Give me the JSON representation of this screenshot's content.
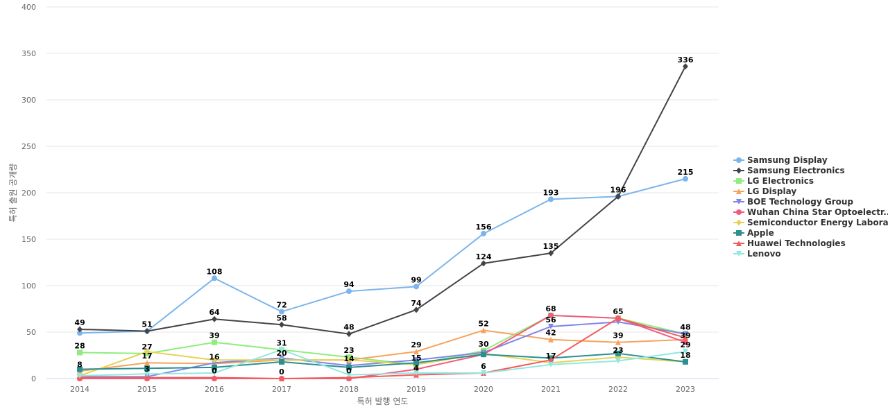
{
  "chart_data": {
    "type": "line",
    "title": "",
    "xlabel": "특허 발행 연도",
    "ylabel": "특허 출원 공개량",
    "x": [
      "2014",
      "2015",
      "2016",
      "2017",
      "2018",
      "2019",
      "2020",
      "2021",
      "2022",
      "2023"
    ],
    "ylim": [
      0,
      400
    ],
    "yticks": [
      0,
      50,
      100,
      150,
      200,
      250,
      300,
      350,
      400
    ],
    "grid": true,
    "legend_position": "right",
    "series": [
      {
        "name": "Samsung Display",
        "color": "#7cb5ec",
        "marker": "circle",
        "values": [
          49,
          51,
          108,
          72,
          94,
          99,
          156,
          193,
          196,
          215
        ]
      },
      {
        "name": "Samsung Electronics",
        "color": "#434348",
        "marker": "diamond",
        "values": [
          53,
          51,
          64,
          58,
          48,
          74,
          124,
          135,
          196,
          336
        ]
      },
      {
        "name": "LG Electronics",
        "color": "#90ed7d",
        "marker": "square",
        "values": [
          28,
          27,
          39,
          31,
          23,
          15,
          30,
          68,
          65,
          48
        ]
      },
      {
        "name": "LG Display",
        "color": "#f7a35c",
        "marker": "triangle",
        "values": [
          8,
          17,
          16,
          20,
          20,
          29,
          52,
          42,
          39,
          42
        ]
      },
      {
        "name": "BOE Technology Group",
        "color": "#8085e9",
        "marker": "triangle-down",
        "values": [
          2,
          2,
          17,
          22,
          14,
          20,
          28,
          56,
          61,
          48
        ]
      },
      {
        "name": "Wuhan China Star Optoelectr...",
        "color": "#f15c80",
        "marker": "circle",
        "values": [
          0,
          0,
          0,
          0,
          0,
          10,
          26,
          68,
          65,
          39
        ]
      },
      {
        "name": "Semiconductor Energy Labora...",
        "color": "#e4d354",
        "marker": "diamond",
        "values": [
          3,
          29,
          20,
          20,
          20,
          15,
          27,
          17,
          23,
          18
        ]
      },
      {
        "name": "Apple",
        "color": "#2b908f",
        "marker": "square",
        "values": [
          10,
          11,
          12,
          18,
          12,
          17,
          26,
          22,
          27,
          18
        ]
      },
      {
        "name": "Huawei Technologies",
        "color": "#f45b5b",
        "marker": "triangle",
        "values": [
          1,
          1,
          1,
          0,
          1,
          4,
          6,
          20,
          65,
          44
        ]
      },
      {
        "name": "Lenovo",
        "color": "#91e8e1",
        "marker": "triangle-down",
        "values": [
          3,
          5,
          6,
          31,
          4,
          6,
          6,
          15,
          19,
          29
        ]
      }
    ],
    "data_labels": [
      {
        "text": "49",
        "x": "2014",
        "y": 53
      },
      {
        "text": "28",
        "x": "2014",
        "y": 28
      },
      {
        "text": "8",
        "x": "2014",
        "y": 8
      },
      {
        "text": "51",
        "x": "2015",
        "y": 51
      },
      {
        "text": "27",
        "x": "2015",
        "y": 27
      },
      {
        "text": "17",
        "x": "2015",
        "y": 17
      },
      {
        "text": "3",
        "x": "2015",
        "y": 3
      },
      {
        "text": "108",
        "x": "2016",
        "y": 108
      },
      {
        "text": "64",
        "x": "2016",
        "y": 64
      },
      {
        "text": "39",
        "x": "2016",
        "y": 39
      },
      {
        "text": "16",
        "x": "2016",
        "y": 16
      },
      {
        "text": "0",
        "x": "2016",
        "y": 1
      },
      {
        "text": "72",
        "x": "2017",
        "y": 72
      },
      {
        "text": "58",
        "x": "2017",
        "y": 58
      },
      {
        "text": "31",
        "x": "2017",
        "y": 31
      },
      {
        "text": "20",
        "x": "2017",
        "y": 20
      },
      {
        "text": "0",
        "x": "2017",
        "y": 0
      },
      {
        "text": "94",
        "x": "2018",
        "y": 94
      },
      {
        "text": "48",
        "x": "2018",
        "y": 48
      },
      {
        "text": "23",
        "x": "2018",
        "y": 23
      },
      {
        "text": "14",
        "x": "2018",
        "y": 14
      },
      {
        "text": "0",
        "x": "2018",
        "y": 1
      },
      {
        "text": "99",
        "x": "2019",
        "y": 99
      },
      {
        "text": "74",
        "x": "2019",
        "y": 74
      },
      {
        "text": "29",
        "x": "2019",
        "y": 29
      },
      {
        "text": "15",
        "x": "2019",
        "y": 15
      },
      {
        "text": "4",
        "x": "2019",
        "y": 4
      },
      {
        "text": "156",
        "x": "2020",
        "y": 156
      },
      {
        "text": "124",
        "x": "2020",
        "y": 124
      },
      {
        "text": "52",
        "x": "2020",
        "y": 52
      },
      {
        "text": "30",
        "x": "2020",
        "y": 30
      },
      {
        "text": "6",
        "x": "2020",
        "y": 6
      },
      {
        "text": "193",
        "x": "2021",
        "y": 193
      },
      {
        "text": "135",
        "x": "2021",
        "y": 135
      },
      {
        "text": "68",
        "x": "2021",
        "y": 68
      },
      {
        "text": "56",
        "x": "2021",
        "y": 56
      },
      {
        "text": "42",
        "x": "2021",
        "y": 42
      },
      {
        "text": "17",
        "x": "2021",
        "y": 17
      },
      {
        "text": "196",
        "x": "2022",
        "y": 196
      },
      {
        "text": "65",
        "x": "2022",
        "y": 65
      },
      {
        "text": "39",
        "x": "2022",
        "y": 39
      },
      {
        "text": "23",
        "x": "2022",
        "y": 23
      },
      {
        "text": "336",
        "x": "2023",
        "y": 336
      },
      {
        "text": "215",
        "x": "2023",
        "y": 215
      },
      {
        "text": "48",
        "x": "2023",
        "y": 48
      },
      {
        "text": "39",
        "x": "2023",
        "y": 39
      },
      {
        "text": "29",
        "x": "2023",
        "y": 29
      },
      {
        "text": "18",
        "x": "2023",
        "y": 18
      }
    ]
  }
}
